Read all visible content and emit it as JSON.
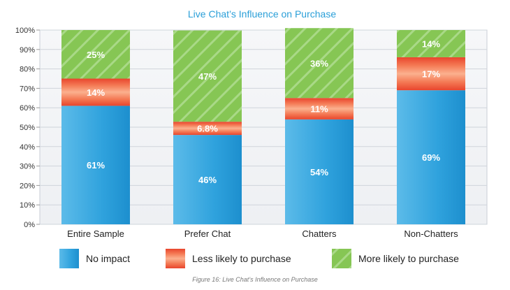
{
  "chart_data": {
    "type": "bar",
    "stacked": true,
    "title": "Live Chat’s Influence on Purchase",
    "categories": [
      "Entire Sample",
      "Prefer Chat",
      "Chatters",
      "Non-Chatters"
    ],
    "series": [
      {
        "name": "No impact",
        "values": [
          61,
          46,
          54,
          69
        ],
        "labels": [
          "61%",
          "46%",
          "54%",
          "69%"
        ],
        "color": "#2b9fdc"
      },
      {
        "name": "Less likely to purchase",
        "values": [
          14,
          6.8,
          11,
          17
        ],
        "labels": [
          "14%",
          "6.8%",
          "11%",
          "17%"
        ],
        "color": "#ee4a2f"
      },
      {
        "name": "More likely to purchase",
        "values": [
          25,
          47,
          36,
          14
        ],
        "labels": [
          "25%",
          "47%",
          "36%",
          "14%"
        ],
        "color": "#7cc24a"
      }
    ],
    "yticks": [
      "0%",
      "10%",
      "20%",
      "30%",
      "40%",
      "50%",
      "60%",
      "70%",
      "80%",
      "90%",
      "100%"
    ],
    "ylim": [
      0,
      100
    ],
    "grid": true,
    "legend_position": "bottom"
  },
  "caption": "Figure 16: Live Chat’s Influence on Purchase"
}
